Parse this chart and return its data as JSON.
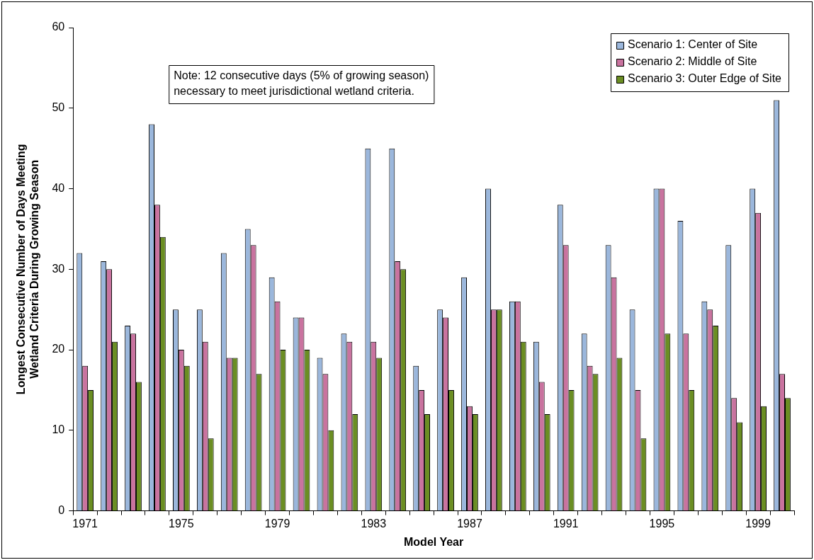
{
  "chart_data": {
    "type": "bar",
    "xlabel": "Model Year",
    "ylabel": "Longest Consecutive Number of Days Meeting Wetland Criteria During Growing Season",
    "categories": [
      "1971",
      null,
      null,
      null,
      "1975",
      null,
      null,
      null,
      "1979",
      null,
      null,
      null,
      "1983",
      null,
      null,
      null,
      "1987",
      null,
      null,
      null,
      "1991",
      null,
      null,
      null,
      "1995",
      null,
      null,
      null,
      "1999",
      null
    ],
    "series": [
      {
        "name": "Scenario 1: Center of Site",
        "color": "#9bb7dc",
        "values": [
          32,
          31,
          23,
          48,
          25,
          25,
          32,
          35,
          29,
          24,
          19,
          22,
          45,
          45,
          18,
          25,
          29,
          40,
          26,
          21,
          38,
          22,
          33,
          25,
          40,
          36,
          26,
          33,
          40,
          51
        ]
      },
      {
        "name": "Scenario 2: Middle of Site",
        "color": "#c9739f",
        "values": [
          18,
          30,
          22,
          38,
          20,
          21,
          19,
          33,
          26,
          24,
          17,
          21,
          21,
          31,
          15,
          24,
          13,
          25,
          26,
          16,
          33,
          18,
          29,
          15,
          40,
          22,
          25,
          14,
          37,
          17
        ]
      },
      {
        "name": "Scenario 3: Outer Edge of Site",
        "color": "#6b8e23",
        "values": [
          15,
          21,
          16,
          34,
          18,
          9,
          19,
          17,
          20,
          20,
          10,
          12,
          19,
          30,
          12,
          15,
          12,
          25,
          21,
          12,
          15,
          17,
          19,
          9,
          22,
          15,
          23,
          11,
          13,
          14
        ]
      }
    ],
    "ylim": [
      0,
      60
    ],
    "yticks": [
      0,
      10,
      20,
      30,
      40,
      50,
      60
    ],
    "legend": "top right",
    "annotations": [
      "Note: 12 consecutive days (5% of growing season) necessary to meet jurisdictional wetland criteria."
    ]
  }
}
